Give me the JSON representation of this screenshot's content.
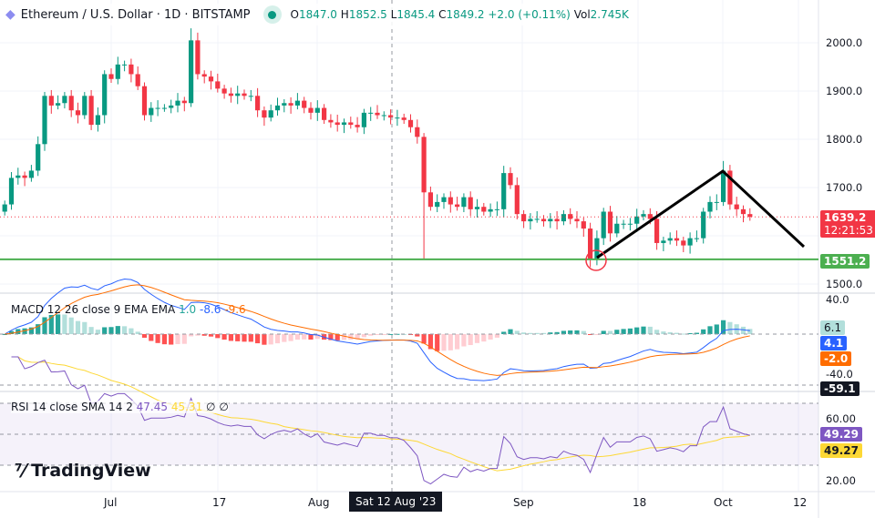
{
  "header": {
    "symbol": "Ethereum / U.S. Dollar · 1D · BITSTAMP",
    "o_label": "O",
    "o": "1847.0",
    "h_label": "H",
    "h": "1852.5",
    "l_label": "L",
    "l": "1845.4",
    "c_label": "C",
    "c": "1849.2",
    "change": "+2.0 (+0.11%)",
    "vol_label": "Vol",
    "vol": "2.745K"
  },
  "price_axis": [
    "2000.0",
    "1900.0",
    "1800.0",
    "1700.0",
    "1500.0"
  ],
  "price_tags": {
    "last": "1639.2",
    "countdown": "12:21:53",
    "hline": "1551.2"
  },
  "macd": {
    "label": "MACD 12 26 close 9 EMA EMA",
    "hist": "1.0",
    "macd": "-8.6",
    "signal": "-9.6",
    "axis": [
      "40.0",
      "-40.0"
    ],
    "tags": {
      "hist": "6.1",
      "macd": "4.1",
      "signal": "-2.0",
      "crosshair": "-59.1"
    }
  },
  "rsi": {
    "label": "RSI 14 close SMA 14 2",
    "rsi": "47.45",
    "sma": "45.31",
    "v3": "∅",
    "v4": "∅",
    "axis": [
      "60.00",
      "20.00"
    ],
    "tags": {
      "rsi": "49.29",
      "sma": "49.27"
    }
  },
  "time_axis": [
    "Jul",
    "17",
    "Aug",
    "Sep",
    "18",
    "Oct",
    "12"
  ],
  "crosshair_date": "Sat 12 Aug '23",
  "logo": "TradingView",
  "colors": {
    "up": "#089981",
    "down": "#f23645",
    "macd": "#2962ff",
    "signal": "#ff6d00",
    "rsi": "#7e57c2",
    "rsi_sma": "#fdd835",
    "hline": "#4caf50"
  },
  "chart_data": {
    "type": "candlestick",
    "start_date": "2023-06-15",
    "closes": [
      1665,
      1720,
      1725,
      1720,
      1735,
      1790,
      1890,
      1870,
      1875,
      1890,
      1860,
      1850,
      1890,
      1830,
      1850,
      1935,
      1925,
      1955,
      1955,
      1935,
      1910,
      1850,
      1865,
      1865,
      1865,
      1870,
      1880,
      1875,
      2005,
      1935,
      1930,
      1920,
      1905,
      1895,
      1890,
      1895,
      1890,
      1890,
      1860,
      1845,
      1860,
      1870,
      1875,
      1870,
      1880,
      1865,
      1855,
      1865,
      1840,
      1835,
      1830,
      1835,
      1830,
      1825,
      1855,
      1855,
      1850,
      1850,
      1845,
      1845,
      1840,
      1825,
      1805,
      1690,
      1660,
      1670,
      1680,
      1665,
      1660,
      1680,
      1655,
      1660,
      1650,
      1655,
      1655,
      1730,
      1705,
      1645,
      1630,
      1635,
      1635,
      1630,
      1635,
      1630,
      1645,
      1635,
      1630,
      1615,
      1550,
      1595,
      1650,
      1605,
      1625,
      1625,
      1625,
      1640,
      1645,
      1635,
      1585,
      1590,
      1595,
      1590,
      1580,
      1595,
      1595,
      1650,
      1670,
      1670,
      1735,
      1665,
      1655,
      1645,
      1639.2
    ],
    "wick_extremes": [
      {
        "date": "Aug 17",
        "low": 1550
      },
      {
        "date": "Sep 11",
        "low": 1535
      },
      {
        "date": "Jul 13",
        "high": 2030
      },
      {
        "date": "Aug 29",
        "high": 1745
      },
      {
        "date": "Oct 1",
        "high": 1755
      }
    ],
    "horizontal_line": 1551.2
  }
}
